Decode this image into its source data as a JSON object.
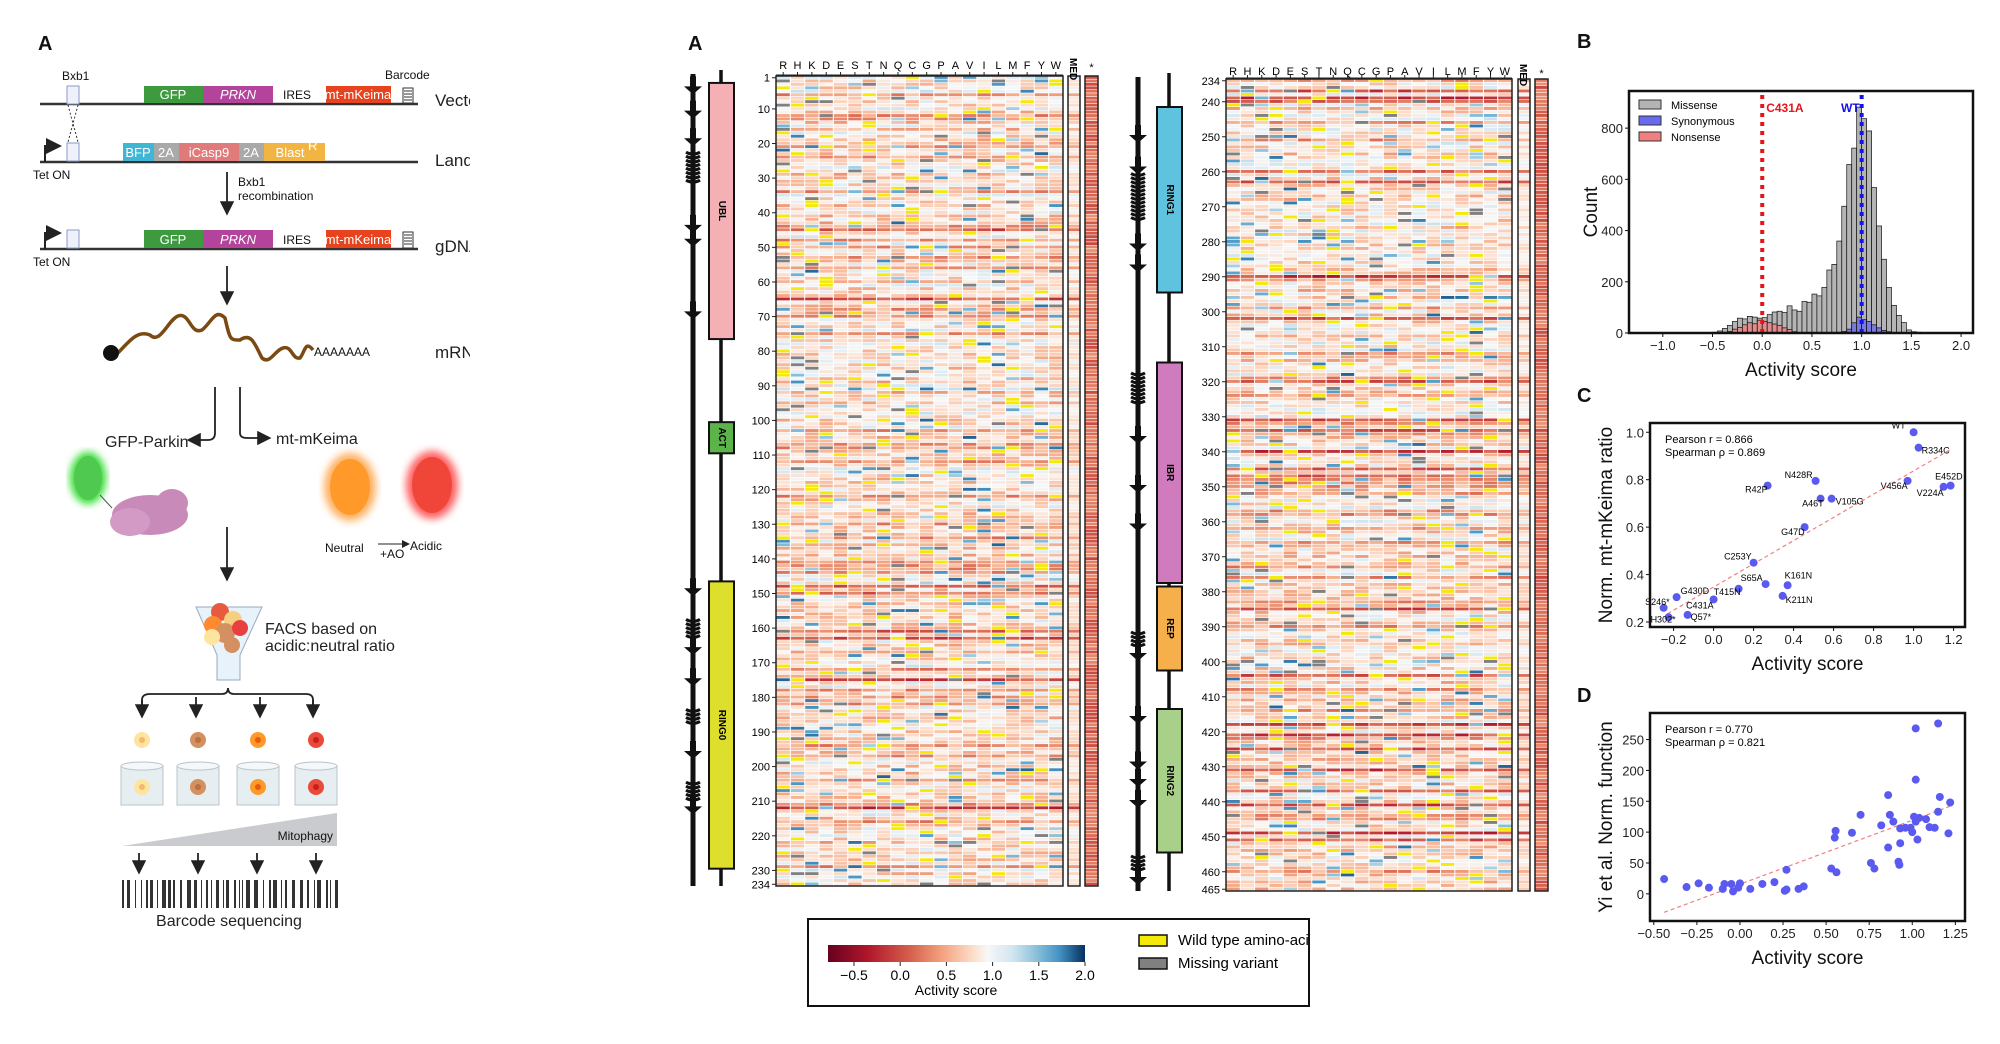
{
  "schematic": {
    "panel_label": "A",
    "vector_dna": {
      "label": "Vector DNA",
      "site": "Bxb1",
      "barcode": "Barcode",
      "gfp": "GFP",
      "prkn": "PRKN",
      "ires": "IRES",
      "mkeima": "mt-mKeima"
    },
    "landing_pad": {
      "label": "Landing pad",
      "promoter": "Tet ON",
      "bfp": "BFP",
      "t2a_1": "2A",
      "icasp9": "iCasp9",
      "t2a_2": "2A",
      "blast": "Blast",
      "blast_sup": "R"
    },
    "recombination": [
      "Bxb1",
      "recombination"
    ],
    "gdna": {
      "label": "gDNA",
      "promoter": "Tet ON",
      "gfp": "GFP",
      "prkn": "PRKN",
      "ires": "IRES",
      "mkeima": "mt-mKeima"
    },
    "mrna": {
      "label": "mRNA",
      "polya": "AAAAAAA"
    },
    "gfp_parkin": "GFP-Parkin",
    "mt_mkeima": "mt-mKeima",
    "neutral": "Neutral",
    "acidic": "Acidic",
    "ao": "+AO",
    "facs": [
      "FACS based on",
      "acidic:neutral ratio"
    ],
    "mitophagy": "Mitophagy",
    "barcode_seq": "Barcode sequencing",
    "colors": {
      "gfp": "#3d9a3f",
      "prkn": "#b3439b",
      "mkeima": "#e8431f",
      "bfp": "#3fb6d6",
      "t2a": "#a9a9a9",
      "icasp9": "#e07b7b",
      "blast": "#f2b544",
      "mrna": "#7a4a12"
    }
  },
  "heatmap_legend": {
    "colorbar_label": "Activity score",
    "ticks": [
      "−0.5",
      "0.0",
      "0.5",
      "1.0",
      "1.5",
      "2.0"
    ],
    "wild_type": "Wild type amino-acid",
    "missing": "Missing variant",
    "wild_type_color": "#f5e90a",
    "missing_color": "#808080"
  },
  "chart_data": [
    {
      "type": "heatmap",
      "panel_label": "A",
      "columns": [
        "R",
        "H",
        "K",
        "D",
        "E",
        "S",
        "T",
        "N",
        "Q",
        "C",
        "G",
        "P",
        "A",
        "V",
        "I",
        "L",
        "M",
        "F",
        "Y",
        "W"
      ],
      "extra_columns": [
        "MED",
        "*"
      ],
      "colorscale": "RdBu",
      "value_range": [
        -0.8,
        2.05
      ],
      "blocks": [
        {
          "rows": [
            1,
            234
          ],
          "row_ticks": [
            "1",
            "10",
            "20",
            "30",
            "40",
            "50",
            "60",
            "70",
            "80",
            "90",
            "100",
            "110",
            "120",
            "130",
            "140",
            "150",
            "160",
            "170",
            "180",
            "190",
            "200",
            "210",
            "220",
            "230",
            "234"
          ],
          "domains": [
            {
              "name": "UBL",
              "start": 3,
              "end": 76,
              "color": "#f4b0b4"
            },
            {
              "name": "ACT",
              "start": 101,
              "end": 109,
              "color": "#5bb34a"
            },
            {
              "name": "RING0",
              "start": 147,
              "end": 229,
              "color": "#dede2c"
            }
          ],
          "strands": [
            4,
            11,
            19,
            44,
            48,
            69,
            149,
            166,
            175,
            196,
            212
          ],
          "helices": [
            [
              23,
              32
            ],
            [
              158,
              163
            ],
            [
              184,
              188
            ],
            [
              205,
              210
            ]
          ],
          "strong_loss_rows": [
            45,
            65,
            148,
            150,
            161,
            163,
            175,
            212
          ]
        },
        {
          "rows": [
            234,
            465
          ],
          "row_ticks": [
            "234",
            "240",
            "250",
            "260",
            "270",
            "280",
            "290",
            "300",
            "310",
            "320",
            "330",
            "340",
            "350",
            "360",
            "370",
            "380",
            "390",
            "400",
            "410",
            "420",
            "430",
            "440",
            "450",
            "460",
            "465"
          ],
          "domains": [
            {
              "name": "RING1",
              "start": 242,
              "end": 294,
              "color": "#5fc3e0"
            },
            {
              "name": "IBR",
              "start": 315,
              "end": 377,
              "color": "#d07bbd"
            },
            {
              "name": "REP",
              "start": 379,
              "end": 402,
              "color": "#f5b04c"
            },
            {
              "name": "RING2",
              "start": 414,
              "end": 454,
              "color": "#a8d08a"
            }
          ],
          "strands": [
            250,
            259,
            281,
            287,
            336,
            350,
            361,
            398,
            416,
            429,
            434,
            440,
            462
          ],
          "helices": [
            [
              261,
              274
            ],
            [
              318,
              327
            ],
            [
              392,
              396
            ],
            [
              456,
              460
            ]
          ],
          "strong_loss_rows": [
            237,
            239,
            240,
            260,
            263,
            290,
            302,
            320,
            331,
            334,
            340,
            345,
            347,
            385,
            404,
            418,
            421,
            425,
            431,
            437,
            441,
            449,
            451
          ]
        }
      ]
    },
    {
      "type": "bar",
      "panel_label": "B",
      "xlabel": "Activity score",
      "ylabel": "Count",
      "xlim": [
        -1.34,
        2.12
      ],
      "ylim": [
        0,
        945
      ],
      "xticks": [
        "−1.0",
        "−0.5",
        "0.0",
        "0.5",
        "1.0",
        "1.5",
        "2.0"
      ],
      "xtick_values": [
        -1.0,
        -0.5,
        0.0,
        0.5,
        1.0,
        1.5,
        2.0
      ],
      "yticks": [
        0,
        200,
        400,
        600,
        800
      ],
      "bin_width": 0.05,
      "legend": "top-left",
      "series": [
        {
          "name": "Missense",
          "color": "#b4b4b4",
          "bin_starts": [
            -0.5,
            -0.45,
            -0.4,
            -0.35,
            -0.3,
            -0.25,
            -0.2,
            -0.15,
            -0.1,
            -0.05,
            0.0,
            0.05,
            0.1,
            0.15,
            0.2,
            0.25,
            0.3,
            0.35,
            0.4,
            0.45,
            0.5,
            0.55,
            0.6,
            0.65,
            0.7,
            0.75,
            0.8,
            0.85,
            0.9,
            0.95,
            1.0,
            1.05,
            1.1,
            1.15,
            1.2,
            1.25,
            1.3,
            1.35,
            1.4,
            1.45,
            1.5,
            1.55,
            1.6
          ],
          "values": [
            3,
            8,
            18,
            30,
            45,
            58,
            55,
            65,
            62,
            58,
            60,
            72,
            82,
            85,
            80,
            106,
            90,
            85,
            123,
            120,
            152,
            145,
            178,
            246,
            268,
            359,
            495,
            658,
            722,
            882,
            837,
            789,
            568,
            418,
            288,
            178,
            108,
            69,
            41,
            12,
            5,
            3,
            2
          ]
        },
        {
          "name": "Synonymous",
          "color": "#6a6af0",
          "bin_starts": [
            0.75,
            0.8,
            0.85,
            0.9,
            0.95,
            1.0,
            1.05,
            1.1,
            1.15,
            1.2,
            1.25
          ],
          "values": [
            3,
            6,
            15,
            40,
            62,
            52,
            45,
            32,
            20,
            10,
            5
          ]
        },
        {
          "name": "Nonsense",
          "color": "#f08080",
          "bin_starts": [
            -0.4,
            -0.35,
            -0.3,
            -0.25,
            -0.2,
            -0.15,
            -0.1,
            -0.05,
            0.0,
            0.05,
            0.1,
            0.15,
            0.2,
            0.25,
            0.3
          ],
          "values": [
            3,
            6,
            15,
            22,
            32,
            40,
            36,
            50,
            45,
            40,
            35,
            30,
            20,
            14,
            5
          ]
        }
      ],
      "reference_lines": [
        {
          "label": "C431A",
          "x": 0.0,
          "color": "#e8141c"
        },
        {
          "label": "WT",
          "x": 1.0,
          "color": "#1414e8"
        }
      ]
    },
    {
      "type": "scatter",
      "panel_label": "C",
      "xlabel": "Activity score",
      "ylabel": "Norm. mt-mKeima ratio",
      "xlim": [
        -0.318,
        1.257
      ],
      "ylim": [
        0.179,
        1.039
      ],
      "xticks": [
        "−0.2",
        "0.0",
        "0.2",
        "0.4",
        "0.6",
        "0.8",
        "1.0",
        "1.2"
      ],
      "xtick_values": [
        -0.2,
        0.0,
        0.2,
        0.4,
        0.6,
        0.8,
        1.0,
        1.2
      ],
      "yticks": [
        "0.2",
        "0.4",
        "0.6",
        "0.8",
        "1.0"
      ],
      "ytick_values": [
        0.2,
        0.4,
        0.6,
        0.8,
        1.0
      ],
      "stats": [
        "Pearson r = 0.866",
        "Spearman ρ = 0.869"
      ],
      "point_color": "#5a5af0",
      "trend": [
        [
          -0.23,
          0.235
        ],
        [
          1.18,
          0.925
        ]
      ],
      "points": [
        {
          "label": "WT",
          "x": 1.0,
          "y": 1.0,
          "anchor": "end",
          "dx": -8,
          "dy": -4
        },
        {
          "label": "R334C",
          "x": 1.025,
          "y": 0.935,
          "anchor": "start",
          "dx": 3,
          "dy": 6
        },
        {
          "label": "E452D",
          "x": 1.185,
          "y": 0.775,
          "anchor": "end",
          "dx": 12,
          "dy": -6
        },
        {
          "label": "V224A",
          "x": 1.15,
          "y": 0.77,
          "anchor": "end",
          "dx": 0,
          "dy": 9
        },
        {
          "label": "V456A",
          "x": 0.97,
          "y": 0.795,
          "anchor": "end",
          "dx": 0,
          "dy": 8
        },
        {
          "label": "N428R",
          "x": 0.51,
          "y": 0.795,
          "anchor": "end",
          "dx": -3,
          "dy": -3
        },
        {
          "label": "R42P",
          "x": 0.27,
          "y": 0.775,
          "anchor": "end",
          "dx": 0,
          "dy": 7
        },
        {
          "label": "A46T",
          "x": 0.535,
          "y": 0.72,
          "anchor": "end",
          "dx": 3,
          "dy": 8
        },
        {
          "label": "V105G",
          "x": 0.59,
          "y": 0.72,
          "anchor": "start",
          "dx": 4,
          "dy": 6
        },
        {
          "label": "G47D",
          "x": 0.455,
          "y": 0.6,
          "anchor": "end",
          "dx": 0,
          "dy": 8
        },
        {
          "label": "C253Y",
          "x": 0.2,
          "y": 0.45,
          "anchor": "end",
          "dx": -2,
          "dy": -3
        },
        {
          "label": "S65A",
          "x": 0.26,
          "y": 0.36,
          "anchor": "end",
          "dx": -3,
          "dy": -3
        },
        {
          "label": "K161N",
          "x": 0.37,
          "y": 0.355,
          "anchor": "start",
          "dx": -3,
          "dy": -7
        },
        {
          "label": "K211N",
          "x": 0.345,
          "y": 0.31,
          "anchor": "start",
          "dx": 3,
          "dy": 7
        },
        {
          "label": "T415N",
          "x": 0.125,
          "y": 0.34,
          "anchor": "end",
          "dx": 2,
          "dy": 6
        },
        {
          "label": "G430D",
          "x": -0.185,
          "y": 0.305,
          "anchor": "start",
          "dx": 4,
          "dy": -3
        },
        {
          "label": "C431A",
          "x": 0.0,
          "y": 0.295,
          "anchor": "end",
          "dx": 0,
          "dy": 9
        },
        {
          "label": "S246*",
          "x": -0.25,
          "y": 0.26,
          "anchor": "end",
          "dx": 6,
          "dy": -3
        },
        {
          "label": "H302*",
          "x": -0.225,
          "y": 0.22,
          "anchor": "end",
          "dx": 7,
          "dy": 5
        },
        {
          "label": "Q57*",
          "x": -0.13,
          "y": 0.23,
          "anchor": "start",
          "dx": 3,
          "dy": 5
        }
      ]
    },
    {
      "type": "scatter",
      "panel_label": "D",
      "xlabel": "Activity score",
      "ylabel": "Yi et al. Norm. function",
      "xlim": [
        -0.522,
        1.306
      ],
      "ylim": [
        -44,
        293
      ],
      "xticks": [
        "−0.50",
        "−0.25",
        "0.00",
        "0.25",
        "0.50",
        "0.75",
        "1.00",
        "1.25"
      ],
      "xtick_values": [
        -0.5,
        -0.25,
        0.0,
        0.25,
        0.5,
        0.75,
        1.0,
        1.25
      ],
      "yticks": [
        "0",
        "50",
        "100",
        "150",
        "200",
        "250"
      ],
      "ytick_values": [
        0,
        50,
        100,
        150,
        200,
        250
      ],
      "stats": [
        "Pearson r = 0.770",
        "Spearman ρ = 0.821"
      ],
      "point_color": "#5a5af0",
      "trend": [
        [
          -0.44,
          -30
        ],
        [
          1.22,
          142
        ]
      ],
      "points": [
        {
          "x": -0.44,
          "y": 24
        },
        {
          "x": -0.31,
          "y": 11
        },
        {
          "x": -0.24,
          "y": 17
        },
        {
          "x": -0.18,
          "y": 10
        },
        {
          "x": -0.1,
          "y": 8
        },
        {
          "x": -0.09,
          "y": 16
        },
        {
          "x": -0.05,
          "y": 16
        },
        {
          "x": -0.04,
          "y": 4
        },
        {
          "x": -0.01,
          "y": 10
        },
        {
          "x": 0.0,
          "y": 17
        },
        {
          "x": 0.06,
          "y": 8
        },
        {
          "x": 0.13,
          "y": 16
        },
        {
          "x": 0.2,
          "y": 19
        },
        {
          "x": 0.26,
          "y": 5
        },
        {
          "x": 0.27,
          "y": 7
        },
        {
          "x": 0.27,
          "y": 39
        },
        {
          "x": 0.34,
          "y": 8
        },
        {
          "x": 0.37,
          "y": 12
        },
        {
          "x": 0.53,
          "y": 41
        },
        {
          "x": 0.55,
          "y": 91
        },
        {
          "x": 0.555,
          "y": 102
        },
        {
          "x": 0.56,
          "y": 35
        },
        {
          "x": 0.65,
          "y": 99
        },
        {
          "x": 0.7,
          "y": 128
        },
        {
          "x": 0.76,
          "y": 50
        },
        {
          "x": 0.78,
          "y": 41
        },
        {
          "x": 0.82,
          "y": 111
        },
        {
          "x": 0.86,
          "y": 160
        },
        {
          "x": 0.86,
          "y": 75
        },
        {
          "x": 0.87,
          "y": 128
        },
        {
          "x": 0.89,
          "y": 117
        },
        {
          "x": 0.92,
          "y": 52
        },
        {
          "x": 0.925,
          "y": 47
        },
        {
          "x": 0.93,
          "y": 82
        },
        {
          "x": 0.93,
          "y": 106
        },
        {
          "x": 0.96,
          "y": 107
        },
        {
          "x": 0.99,
          "y": 107
        },
        {
          "x": 1.0,
          "y": 100
        },
        {
          "x": 1.01,
          "y": 125
        },
        {
          "x": 1.02,
          "y": 117
        },
        {
          "x": 1.02,
          "y": 185
        },
        {
          "x": 1.02,
          "y": 268
        },
        {
          "x": 1.03,
          "y": 88
        },
        {
          "x": 1.04,
          "y": 123
        },
        {
          "x": 1.08,
          "y": 121
        },
        {
          "x": 1.1,
          "y": 108
        },
        {
          "x": 1.13,
          "y": 107
        },
        {
          "x": 1.15,
          "y": 133
        },
        {
          "x": 1.15,
          "y": 276
        },
        {
          "x": 1.16,
          "y": 157
        },
        {
          "x": 1.21,
          "y": 98
        },
        {
          "x": 1.22,
          "y": 148
        }
      ]
    }
  ]
}
